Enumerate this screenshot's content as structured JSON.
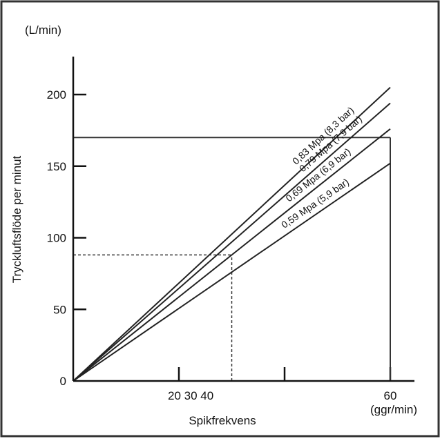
{
  "chart_data": {
    "type": "line",
    "title": "",
    "xlabel": "Spikfrekvens",
    "ylabel": "Tryckluftsflöde per minut",
    "x_unit": "(ggr/min)",
    "y_unit": "(L/min)",
    "xlim": [
      0,
      60
    ],
    "ylim": [
      0,
      200
    ],
    "grid": false,
    "legend": "none",
    "x_ticks": [
      {
        "value": 20,
        "label": ""
      },
      {
        "value": 40,
        "label": ""
      },
      {
        "value": 60,
        "label": "60"
      }
    ],
    "x_tick_annotation": "20 30 40",
    "y_ticks": [
      {
        "value": 0,
        "label": "0"
      },
      {
        "value": 50,
        "label": "50"
      },
      {
        "value": 100,
        "label": "100"
      },
      {
        "value": 150,
        "label": "150"
      },
      {
        "value": 200,
        "label": "200"
      }
    ],
    "series": [
      {
        "name": "0,83 Mpa (8,3 bar)",
        "x": [
          0,
          60
        ],
        "y": [
          0,
          205
        ]
      },
      {
        "name": "0,79 Mpa (7,9 bar)",
        "x": [
          0,
          60
        ],
        "y": [
          0,
          194
        ]
      },
      {
        "name": "0,69 Mpa (6,9 bar)",
        "x": [
          0,
          60
        ],
        "y": [
          0,
          176
        ]
      },
      {
        "name": "0,59 Mpa (5,9 bar)",
        "x": [
          0,
          60
        ],
        "y": [
          0,
          152
        ]
      }
    ],
    "reference_lines": [
      {
        "kind": "horizontal",
        "y": 170,
        "x_from": 0,
        "x_to": 60,
        "style": "solid"
      },
      {
        "kind": "vertical",
        "x": 60,
        "y_from": 0,
        "y_to": 170,
        "style": "solid"
      },
      {
        "kind": "horizontal",
        "y": 88,
        "x_from": 0,
        "x_to": 30,
        "style": "dashed"
      },
      {
        "kind": "vertical",
        "x": 30,
        "y_from": 0,
        "y_to": 88,
        "style": "dashed"
      }
    ],
    "colors": {
      "line": "#222222",
      "axis": "#111111",
      "border": "#333333"
    }
  }
}
